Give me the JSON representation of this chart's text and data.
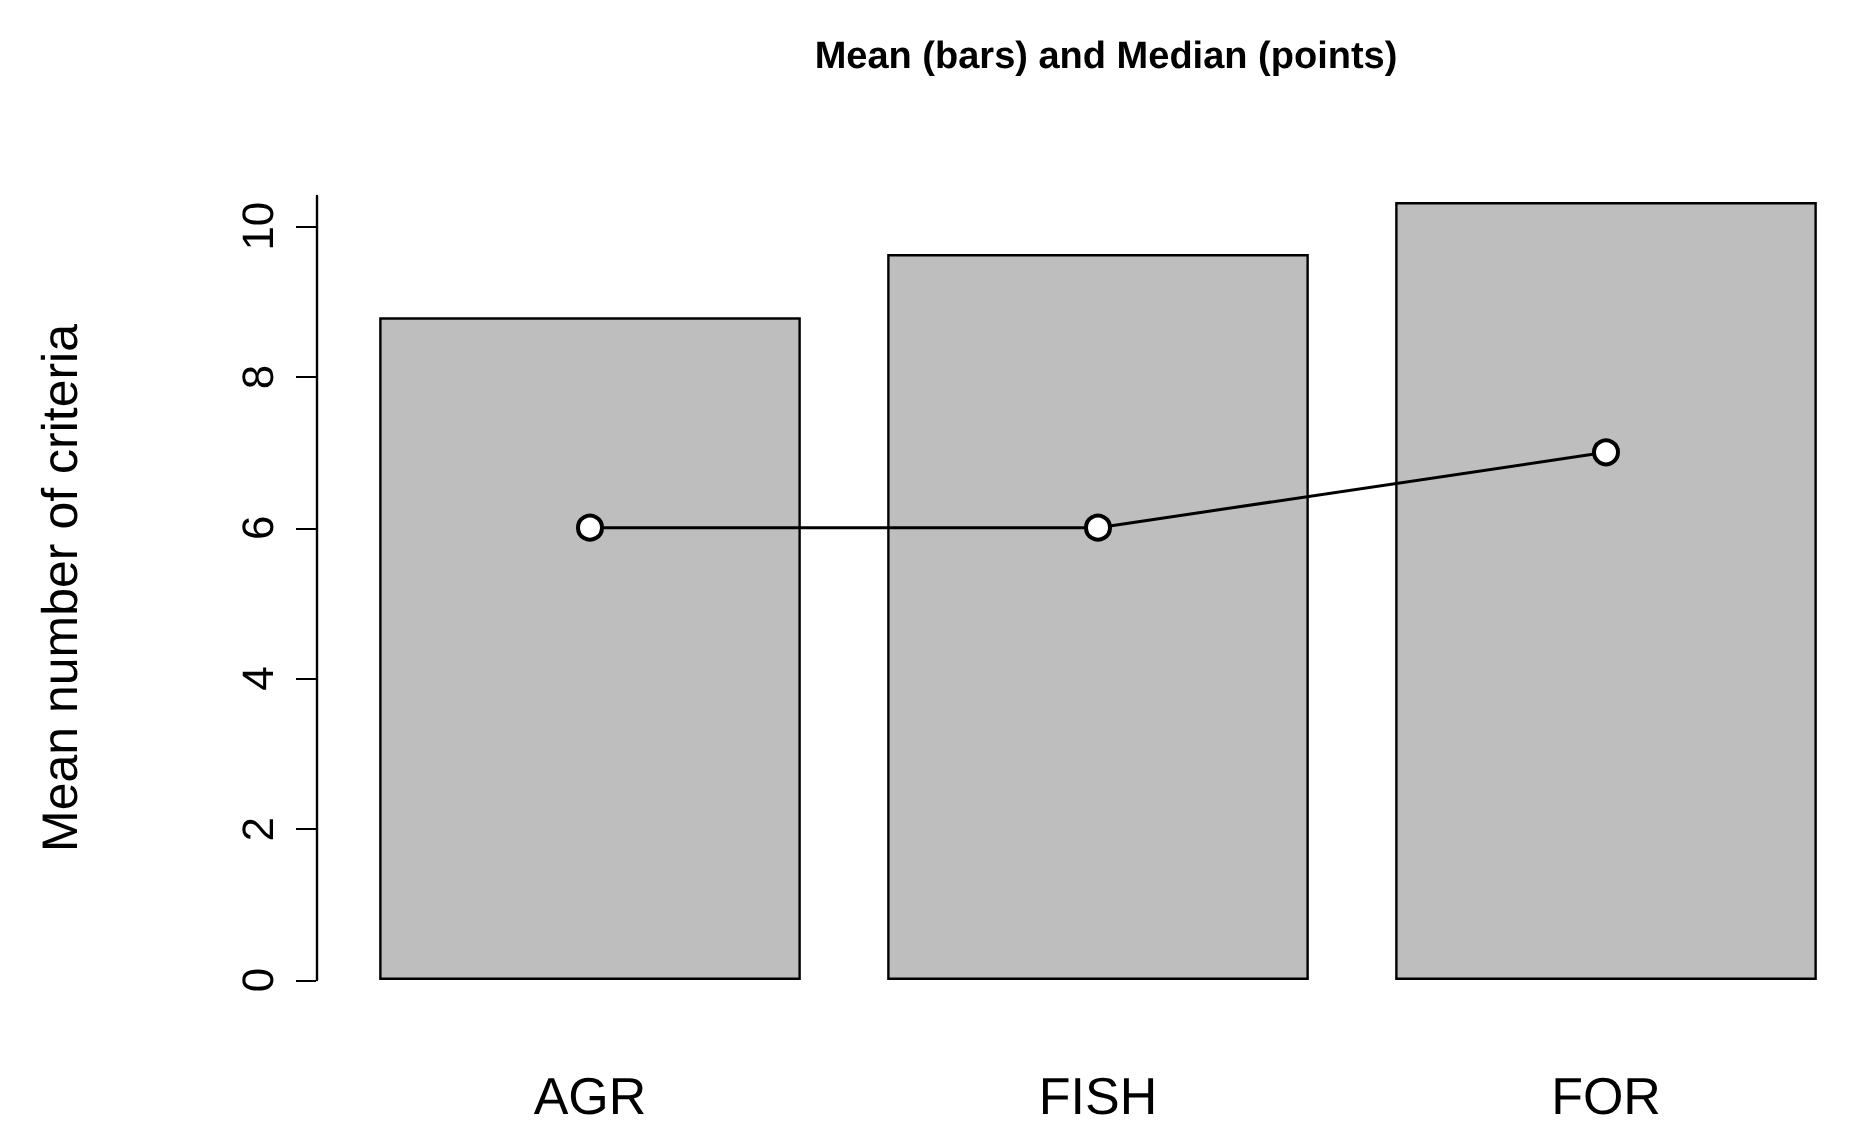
{
  "chart_data": {
    "type": "bar",
    "title": "Mean (bars) and Median (points)",
    "ylabel": "Mean number of criteria",
    "categories": [
      "AGR",
      "FISH",
      "FOR"
    ],
    "series": [
      {
        "color": "#bebebe",
        "values": [
          8.79,
          9.63,
          10.32
        ]
      },
      {
        "type": "line",
        "color": "#000000",
        "values": [
          6,
          6,
          7
        ]
      }
    ],
    "marker": "circle",
    "ylim": [
      0,
      10.4
    ],
    "yticks": [
      0,
      2,
      4,
      6,
      8,
      10
    ]
  }
}
